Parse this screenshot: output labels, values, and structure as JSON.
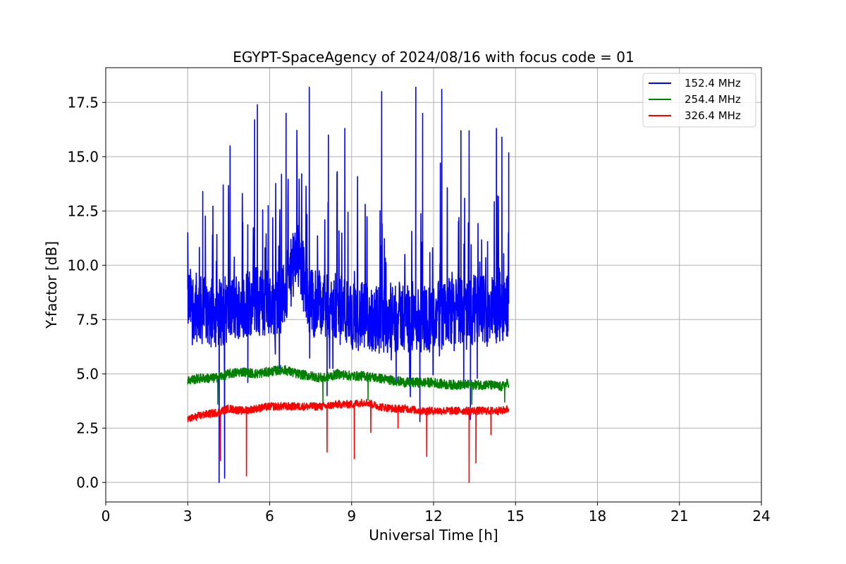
{
  "chart_data": {
    "type": "line",
    "title": "EGYPT-SpaceAgency of 2024/08/16 with focus code = 01",
    "xlabel": "Universal Time [h]",
    "ylabel": "Y-factor [dB]",
    "xlim": [
      0,
      24
    ],
    "ylim": [
      -0.9,
      19.1
    ],
    "xticks": [
      0,
      3,
      6,
      9,
      12,
      15,
      18,
      21,
      24
    ],
    "xtick_labels": [
      "0",
      "3",
      "6",
      "9",
      "12",
      "15",
      "18",
      "21",
      "24"
    ],
    "yticks": [
      0,
      2.5,
      5,
      7.5,
      10,
      12.5,
      15,
      17.5
    ],
    "ytick_labels": [
      "0.0",
      "2.5",
      "5.0",
      "7.5",
      "10.0",
      "12.5",
      "15.0",
      "17.5"
    ],
    "grid": true,
    "legend_position": "top-right",
    "series": [
      {
        "name": "152.4 MHz",
        "color": "#0000ff",
        "x": [
          3.0,
          3.5,
          4.0,
          4.5,
          5.0,
          5.5,
          6.0,
          6.5,
          7.0,
          7.5,
          8.0,
          8.5,
          9.0,
          9.5,
          10.0,
          10.5,
          11.0,
          11.5,
          12.0,
          12.5,
          13.0,
          13.5,
          14.0,
          14.5,
          14.75
        ],
        "y": [
          8.4,
          7.9,
          7.8,
          8.0,
          8.2,
          8.4,
          8.2,
          8.5,
          10.5,
          8.3,
          8.0,
          8.0,
          7.7,
          7.6,
          7.5,
          7.6,
          7.7,
          7.6,
          7.6,
          7.8,
          7.9,
          8.0,
          8.0,
          8.1,
          8.3
        ],
        "peaks": [
          {
            "x": 3.0,
            "y": 11.5
          },
          {
            "x": 3.55,
            "y": 13.4
          },
          {
            "x": 4.3,
            "y": 13.7
          },
          {
            "x": 4.55,
            "y": 15.5
          },
          {
            "x": 5.45,
            "y": 16.7
          },
          {
            "x": 5.55,
            "y": 17.4
          },
          {
            "x": 6.6,
            "y": 17.0
          },
          {
            "x": 7.45,
            "y": 18.2
          },
          {
            "x": 8.15,
            "y": 16.0
          },
          {
            "x": 8.75,
            "y": 16.3
          },
          {
            "x": 10.1,
            "y": 18.0
          },
          {
            "x": 11.35,
            "y": 18.2
          },
          {
            "x": 11.6,
            "y": 17.0
          },
          {
            "x": 12.3,
            "y": 18.1
          },
          {
            "x": 13.0,
            "y": 16.2
          },
          {
            "x": 13.3,
            "y": 16.2
          },
          {
            "x": 14.3,
            "y": 16.3
          },
          {
            "x": 14.5,
            "y": 15.9
          },
          {
            "x": 14.75,
            "y": 15.2
          }
        ],
        "dips": [
          {
            "x": 4.15,
            "y": 0.0
          },
          {
            "x": 4.35,
            "y": 0.2
          },
          {
            "x": 5.2,
            "y": 4.6
          },
          {
            "x": 8.1,
            "y": 4.0
          },
          {
            "x": 11.5,
            "y": 2.8
          },
          {
            "x": 13.35,
            "y": 2.9
          },
          {
            "x": 13.6,
            "y": 4.8
          }
        ]
      },
      {
        "name": "254.4 MHz",
        "color": "#008000",
        "x": [
          3.0,
          3.5,
          4.0,
          4.5,
          5.0,
          5.5,
          6.0,
          6.5,
          7.0,
          7.5,
          8.0,
          8.5,
          9.0,
          9.5,
          10.0,
          10.5,
          11.0,
          11.5,
          12.0,
          12.5,
          13.0,
          13.5,
          14.0,
          14.5,
          14.75
        ],
        "y": [
          4.7,
          4.8,
          4.8,
          5.0,
          5.1,
          5.0,
          5.1,
          5.2,
          5.0,
          4.9,
          4.8,
          5.0,
          4.9,
          4.9,
          4.8,
          4.7,
          4.6,
          4.6,
          4.6,
          4.5,
          4.5,
          4.5,
          4.5,
          4.4,
          4.6
        ],
        "dips": [
          {
            "x": 4.1,
            "y": 3.6
          },
          {
            "x": 7.95,
            "y": 3.6
          },
          {
            "x": 9.6,
            "y": 3.8
          },
          {
            "x": 13.4,
            "y": 3.6
          },
          {
            "x": 14.6,
            "y": 3.7
          }
        ]
      },
      {
        "name": "326.4 MHz",
        "color": "#ff0000",
        "x": [
          3.0,
          3.5,
          4.0,
          4.5,
          5.0,
          5.5,
          6.0,
          6.5,
          7.0,
          7.5,
          8.0,
          8.5,
          9.0,
          9.5,
          10.0,
          10.5,
          11.0,
          11.5,
          12.0,
          12.5,
          13.0,
          13.5,
          14.0,
          14.5,
          14.75
        ],
        "y": [
          2.9,
          3.1,
          3.2,
          3.4,
          3.3,
          3.4,
          3.5,
          3.5,
          3.5,
          3.5,
          3.5,
          3.6,
          3.6,
          3.7,
          3.5,
          3.4,
          3.4,
          3.3,
          3.3,
          3.3,
          3.3,
          3.3,
          3.3,
          3.3,
          3.4
        ],
        "dips": [
          {
            "x": 4.2,
            "y": 1.0
          },
          {
            "x": 5.15,
            "y": 0.3
          },
          {
            "x": 8.1,
            "y": 1.4
          },
          {
            "x": 9.1,
            "y": 1.1
          },
          {
            "x": 9.7,
            "y": 2.3
          },
          {
            "x": 10.7,
            "y": 2.5
          },
          {
            "x": 11.75,
            "y": 1.2
          },
          {
            "x": 13.3,
            "y": 0.0
          },
          {
            "x": 13.55,
            "y": 0.9
          },
          {
            "x": 14.1,
            "y": 2.2
          }
        ]
      }
    ]
  }
}
